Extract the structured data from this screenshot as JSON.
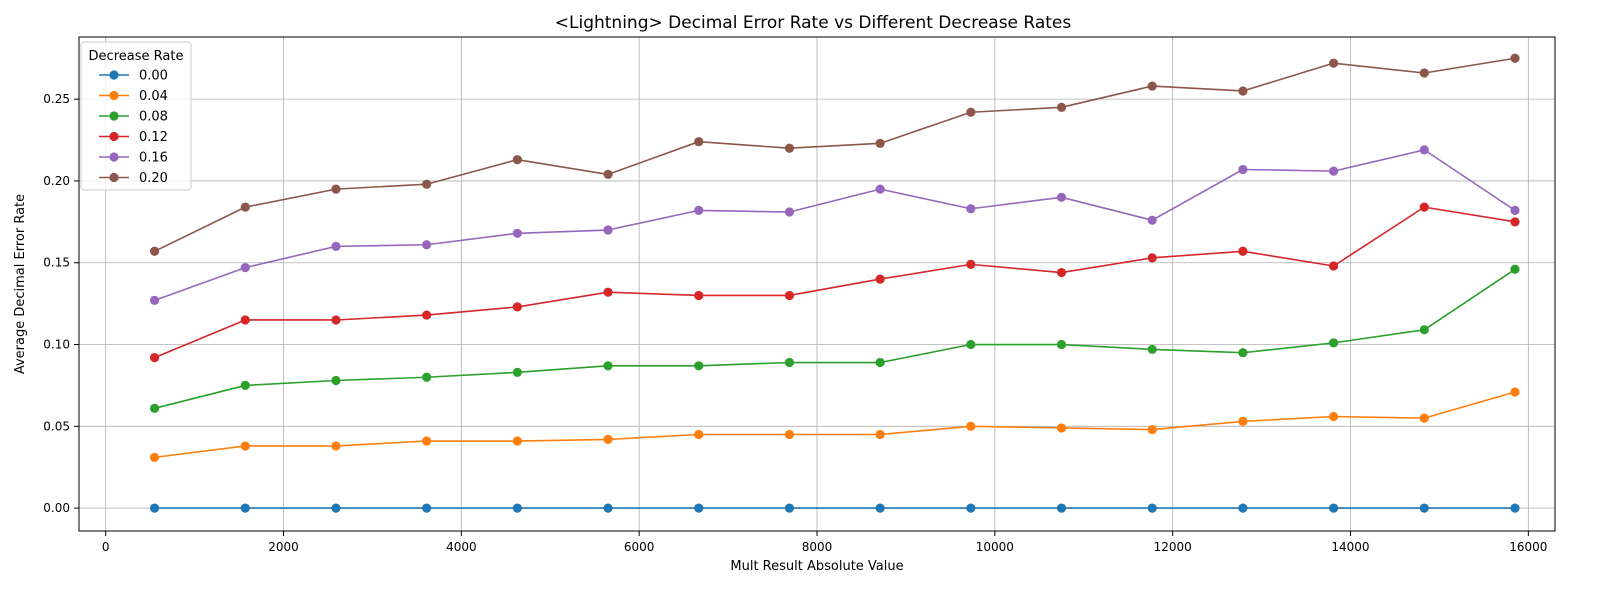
{
  "chart_data": {
    "type": "line",
    "title": "<Lightning> Decimal Error Rate vs Different Decrease Rates",
    "xlabel": "Mult Result Absolute Value",
    "ylabel": "Average Decimal Error Rate",
    "xlim": [
      -300,
      16300
    ],
    "ylim": [
      -0.014,
      0.288
    ],
    "xticks": [
      0,
      2000,
      4000,
      6000,
      8000,
      10000,
      12000,
      14000,
      16000
    ],
    "yticks": [
      "0.00",
      "0.05",
      "0.10",
      "0.15",
      "0.20",
      "0.25"
    ],
    "grid": true,
    "legend": {
      "title": "Decrease Rate",
      "placement": "top-left"
    },
    "x": [
      550,
      1570,
      2590,
      3610,
      4630,
      5650,
      6670,
      7690,
      8710,
      9730,
      10750,
      11770,
      12790,
      13810,
      14830,
      15850
    ],
    "series": [
      {
        "name": "0.00",
        "color": "#1f77b4",
        "values": [
          0,
          0,
          0,
          0,
          0,
          0,
          0,
          0,
          0,
          0,
          0,
          0,
          0,
          0,
          0,
          0
        ]
      },
      {
        "name": "0.04",
        "color": "#ff7f0e",
        "values": [
          0.031,
          0.038,
          0.038,
          0.041,
          0.041,
          0.042,
          0.045,
          0.045,
          0.045,
          0.05,
          0.049,
          0.048,
          0.053,
          0.056,
          0.055,
          0.071
        ]
      },
      {
        "name": "0.08",
        "color": "#2ca02c",
        "values": [
          0.061,
          0.075,
          0.078,
          0.08,
          0.083,
          0.087,
          0.087,
          0.089,
          0.089,
          0.1,
          0.1,
          0.097,
          0.095,
          0.101,
          0.109,
          0.146
        ]
      },
      {
        "name": "0.12",
        "color": "#d62728",
        "values": [
          0.092,
          0.115,
          0.115,
          0.118,
          0.123,
          0.132,
          0.13,
          0.13,
          0.14,
          0.149,
          0.144,
          0.153,
          0.157,
          0.148,
          0.184,
          0.175
        ]
      },
      {
        "name": "0.16",
        "color": "#9467bd",
        "values": [
          0.127,
          0.147,
          0.16,
          0.161,
          0.168,
          0.17,
          0.182,
          0.181,
          0.195,
          0.183,
          0.19,
          0.176,
          0.207,
          0.206,
          0.219,
          0.182
        ]
      },
      {
        "name": "0.20",
        "color": "#8c564b",
        "values": [
          0.157,
          0.184,
          0.195,
          0.198,
          0.213,
          0.204,
          0.224,
          0.22,
          0.223,
          0.242,
          0.245,
          0.258,
          0.255,
          0.272,
          0.266,
          0.275
        ]
      }
    ]
  }
}
